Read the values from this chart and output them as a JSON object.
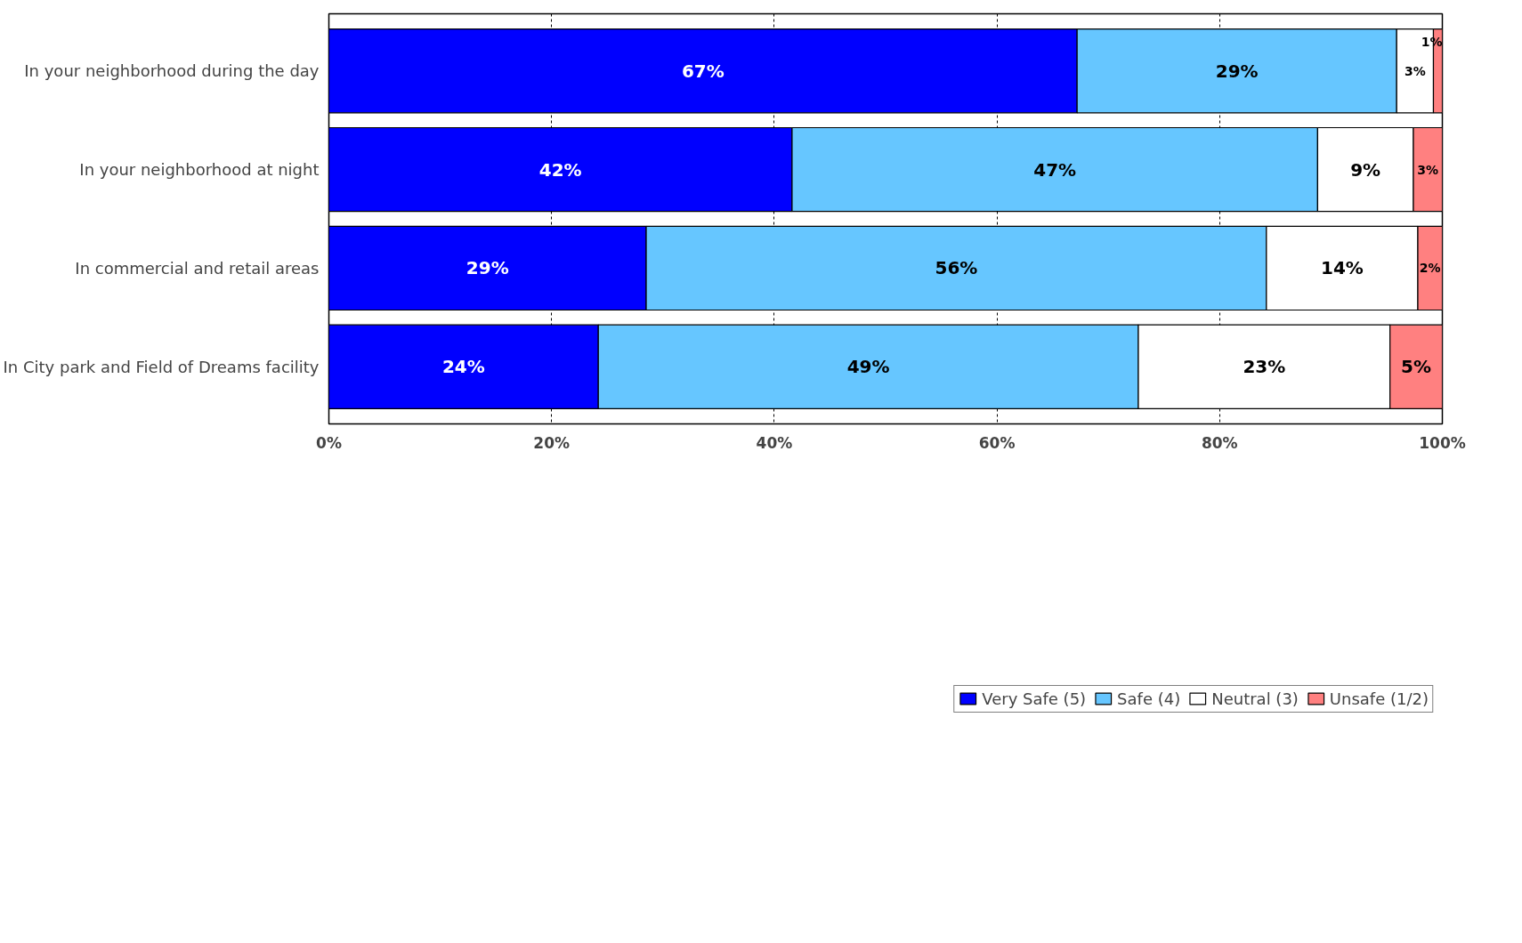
{
  "chart_data": {
    "type": "bar",
    "orientation": "horizontal",
    "stacked": true,
    "categories": [
      "In your neighborhood during the day",
      "In your neighborhood at night",
      "In commercial and retail areas",
      "In City park and Field of Dreams facility"
    ],
    "series": [
      {
        "name": "Very Safe (5)",
        "color": "#0000ff",
        "values": [
          67.2,
          41.6,
          28.5,
          24.2
        ],
        "value_labels": [
          "67%",
          "42%",
          "29%",
          "24%"
        ]
      },
      {
        "name": "Safe (4)",
        "color": "#66c6ff",
        "values": [
          28.7,
          47.2,
          55.7,
          48.5
        ],
        "value_labels": [
          "29%",
          "47%",
          "56%",
          "49%"
        ]
      },
      {
        "name": "Neutral (3)",
        "color": "#ffffff",
        "values": [
          3.3,
          8.6,
          13.6,
          22.6
        ],
        "value_labels": [
          "3%",
          "9%",
          "14%",
          "23%"
        ]
      },
      {
        "name": "Unsafe (1/2)",
        "color": "#ff8080",
        "values": [
          0.8,
          2.6,
          2.2,
          4.7
        ],
        "value_labels": [
          "1%",
          "3%",
          "2%",
          "5%"
        ]
      }
    ],
    "xlim": [
      0,
      100
    ],
    "xticks": [
      {
        "value": 0,
        "label": "0%"
      },
      {
        "value": 20,
        "label": "20%"
      },
      {
        "value": 40,
        "label": "40%"
      },
      {
        "value": 60,
        "label": "60%"
      },
      {
        "value": 80,
        "label": "80%"
      },
      {
        "value": 100,
        "label": "100%"
      }
    ],
    "grid": "x",
    "legend": "bottom"
  }
}
